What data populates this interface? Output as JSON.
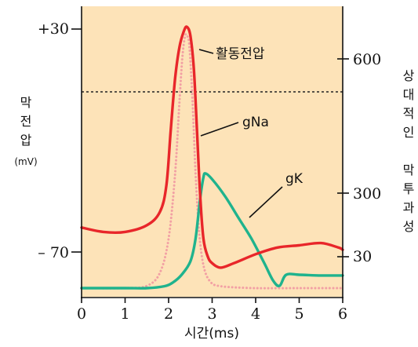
{
  "chart_data": {
    "type": "line",
    "x_axis": {
      "label": "시간(ms)",
      "ticks": [
        0,
        1,
        2,
        3,
        4,
        5,
        6
      ],
      "range": [
        0,
        6
      ]
    },
    "left_axis": {
      "label_lines": [
        "막",
        "전",
        "압"
      ],
      "unit": "(mV)",
      "tick_labels": [
        "+30",
        "– 70"
      ],
      "tick_values": [
        30,
        -70
      ]
    },
    "right_axis": {
      "label_top": [
        "상",
        "대",
        "적",
        "인"
      ],
      "label_bottom": [
        "막",
        "투",
        "과",
        "성"
      ],
      "tick_labels": [
        "600",
        "300",
        "30"
      ]
    },
    "series": [
      {
        "name": "활동전압",
        "axis": "left",
        "color": "#e8262a",
        "style": "solid",
        "x": [
          0,
          0.5,
          1.0,
          1.5,
          1.8,
          1.95,
          2.05,
          2.15,
          2.25,
          2.35,
          2.42,
          2.5,
          2.58,
          2.65,
          2.72,
          2.8,
          2.9,
          3.0,
          3.2,
          3.5,
          4.0,
          4.5,
          5.0,
          5.5,
          5.9,
          6.0
        ],
        "y": [
          -59,
          -61,
          -61,
          -58,
          -52,
          -40,
          -15,
          8,
          22,
          29,
          31,
          27,
          12,
          -15,
          -43,
          -64,
          -72,
          -75,
          -77,
          -75,
          -71,
          -68,
          -67,
          -66,
          -68,
          -69
        ]
      },
      {
        "name": "gNa",
        "axis": "right",
        "color": "#f2a0a4",
        "style": "dotted",
        "x": [
          0,
          1.0,
          1.5,
          1.8,
          2.0,
          2.15,
          2.25,
          2.32,
          2.38,
          2.43,
          2.48,
          2.55,
          2.62,
          2.7,
          2.8,
          2.95,
          3.2,
          4.0,
          5.0,
          6.0
        ],
        "y": [
          0,
          0,
          6,
          40,
          130,
          300,
          490,
          610,
          660,
          660,
          630,
          490,
          300,
          150,
          60,
          18,
          5,
          0,
          0,
          0
        ]
      },
      {
        "name": "gK",
        "axis": "right",
        "color": "#1fb38d",
        "style": "solid",
        "x": [
          0,
          1.0,
          1.5,
          1.9,
          2.1,
          2.3,
          2.5,
          2.62,
          2.72,
          2.8,
          2.85,
          3.0,
          3.3,
          3.6,
          3.9,
          4.2,
          4.4,
          4.55,
          4.7,
          5.0,
          5.5,
          6.0
        ],
        "y": [
          0,
          0,
          0,
          5,
          15,
          35,
          70,
          130,
          230,
          290,
          300,
          285,
          240,
          185,
          130,
          65,
          20,
          6,
          35,
          35,
          33,
          33
        ]
      }
    ],
    "annotations": {
      "threshold_line": "dashed horizontal reference line"
    }
  }
}
